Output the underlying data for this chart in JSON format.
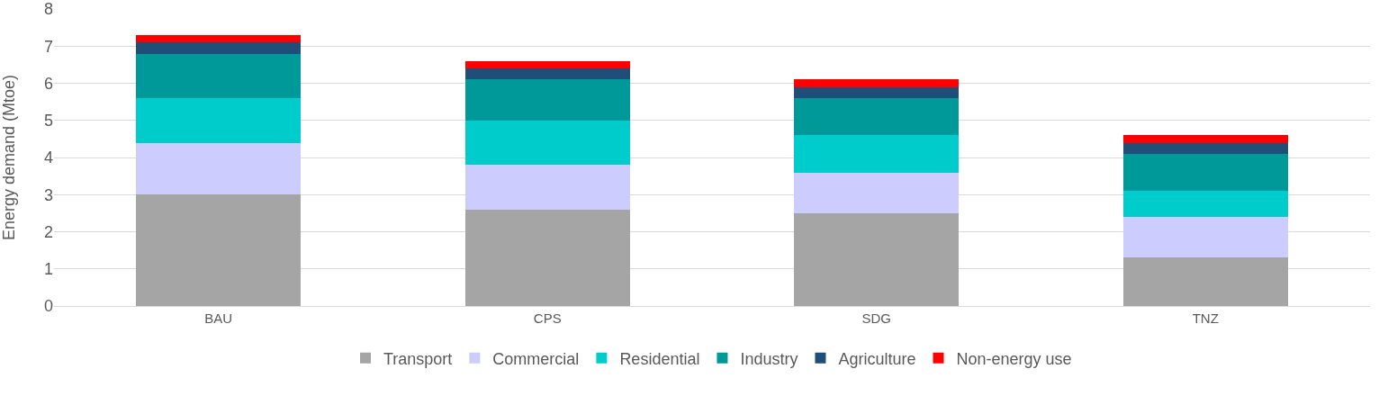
{
  "chart_data": {
    "type": "bar",
    "stacked": true,
    "ylabel": "Energy demand (Mtoe)",
    "categories": [
      "BAU",
      "CPS",
      "SDG",
      "TNZ"
    ],
    "series": [
      {
        "name": "Transport",
        "color": "#a5a5a5",
        "values": [
          3.0,
          2.6,
          2.5,
          1.3
        ]
      },
      {
        "name": "Commercial",
        "color": "#ccccff",
        "values": [
          1.4,
          1.2,
          1.1,
          1.1
        ]
      },
      {
        "name": "Residential",
        "color": "#00cccc",
        "values": [
          1.2,
          1.2,
          1.0,
          0.7
        ]
      },
      {
        "name": "Industry",
        "color": "#009999",
        "values": [
          1.2,
          1.1,
          1.0,
          1.0
        ]
      },
      {
        "name": "Agriculture",
        "color": "#1f4e79",
        "values": [
          0.3,
          0.3,
          0.3,
          0.3
        ]
      },
      {
        "name": "Non-energy use",
        "color": "#ff0000",
        "values": [
          0.2,
          0.2,
          0.2,
          0.2
        ]
      }
    ],
    "ylim": [
      0,
      8
    ],
    "yticks": [
      0,
      1,
      2,
      3,
      4,
      5,
      6,
      7,
      8
    ],
    "grid": "y",
    "legend": "bottom"
  }
}
